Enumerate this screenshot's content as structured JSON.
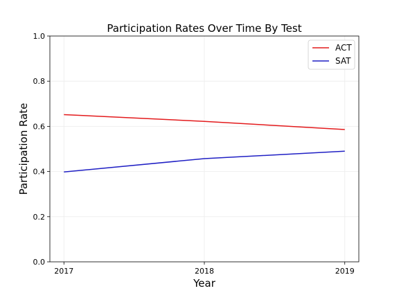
{
  "chart_data": {
    "type": "line",
    "title": "Participation Rates Over Time By Test",
    "xlabel": "Year",
    "ylabel": "Participation Rate",
    "categories": [
      "2017",
      "2018",
      "2019"
    ],
    "x": [
      2017,
      2018,
      2019
    ],
    "xlim": [
      2016.9,
      2019.1
    ],
    "ylim": [
      0.0,
      1.0
    ],
    "y_ticks": [
      "0.0",
      "0.2",
      "0.4",
      "0.6",
      "0.8",
      "1.0"
    ],
    "grid": true,
    "legend_position": "top-right",
    "series": [
      {
        "name": "ACT",
        "color": "#e31a1c",
        "values": [
          0.652,
          0.622,
          0.586
        ]
      },
      {
        "name": "SAT",
        "color": "#1f1fc4",
        "values": [
          0.398,
          0.457,
          0.49
        ]
      }
    ]
  }
}
